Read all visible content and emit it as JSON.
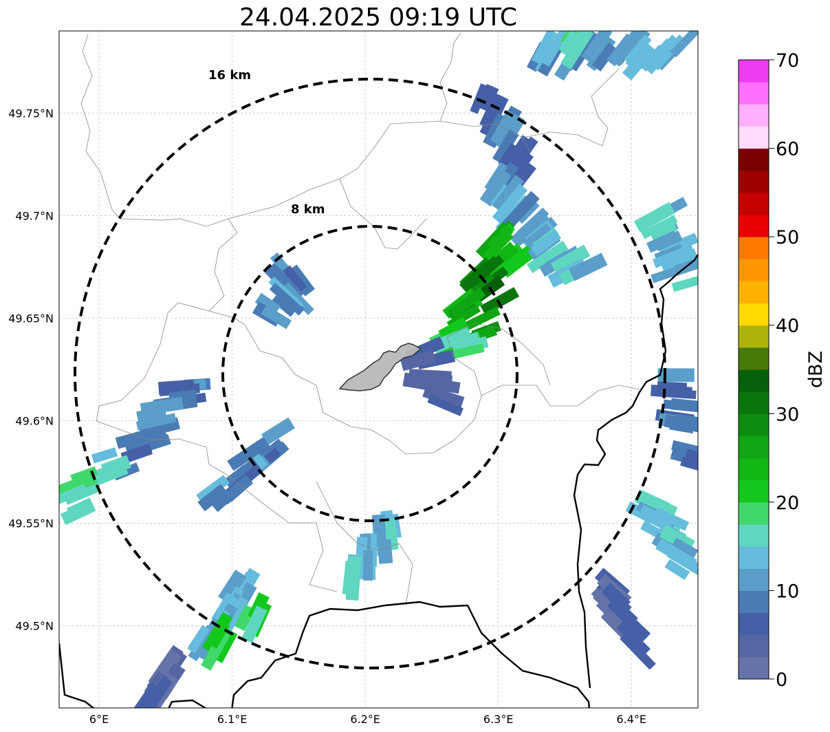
{
  "title": "24.04.2025 09:19 UTC",
  "map": {
    "lon_range": [
      5.97,
      6.45
    ],
    "lat_range": [
      49.46,
      49.79
    ],
    "x_ticks": [
      {
        "value": 6.0,
        "label": "6°E"
      },
      {
        "value": 6.1,
        "label": "6.1°E"
      },
      {
        "value": 6.2,
        "label": "6.2°E"
      },
      {
        "value": 6.3,
        "label": "6.3°E"
      },
      {
        "value": 6.4,
        "label": "6.4°E"
      }
    ],
    "y_ticks": [
      {
        "value": 49.5,
        "label": "49.5°N"
      },
      {
        "value": 49.55,
        "label": "49.55°N"
      },
      {
        "value": 49.6,
        "label": "49.6°N"
      },
      {
        "value": 49.65,
        "label": "49.65°N"
      },
      {
        "value": 49.7,
        "label": "49.7°N"
      },
      {
        "value": 49.75,
        "label": "49.75°N"
      }
    ],
    "gridlines": true,
    "radar_center": {
      "lon": 6.2,
      "lat": 49.623
    },
    "range_rings": [
      {
        "radius_km": 8,
        "label": "8 km"
      },
      {
        "radius_km": 16,
        "label": "16 km"
      }
    ]
  },
  "colorbar": {
    "label": "dBZ",
    "min": 0,
    "max": 70,
    "ticks": [
      {
        "value": 0,
        "label": "0"
      },
      {
        "value": 10,
        "label": "10"
      },
      {
        "value": 20,
        "label": "20"
      },
      {
        "value": 30,
        "label": "30"
      },
      {
        "value": 40,
        "label": "40"
      },
      {
        "value": 50,
        "label": "50"
      },
      {
        "value": 60,
        "label": "60"
      },
      {
        "value": 70,
        "label": "70"
      }
    ],
    "colors": [
      "#6473a8",
      "#5566a3",
      "#4560a6",
      "#4a7bb4",
      "#5a9ec9",
      "#66bcdc",
      "#5fd7c0",
      "#3fd86a",
      "#12c81c",
      "#12b715",
      "#0fa513",
      "#0c8d10",
      "#08760c",
      "#056009",
      "#477a06",
      "#adb309",
      "#ffd900",
      "#ffb300",
      "#ff9800",
      "#ff7a00",
      "#e80000",
      "#c40000",
      "#9e0000",
      "#7a0000",
      "#ffdcff",
      "#ffb0ff",
      "#ff70ff",
      "#f03cf0"
    ]
  },
  "chart_data": {
    "type": "heatmap",
    "title": "24.04.2025 09:19 UTC",
    "quantity": "dBZ",
    "xlabel": "",
    "ylabel": "",
    "xlim": [
      5.97,
      6.45
    ],
    "ylim": [
      49.46,
      49.79
    ],
    "cells": [
      {
        "lon": 6.33,
        "lat": 49.778,
        "lon2": 6.44,
        "lat2": 49.78,
        "dbz": 12
      },
      {
        "lon": 6.36,
        "lat": 49.784,
        "lon2": 6.36,
        "lat2": 49.784,
        "dbz": 18
      },
      {
        "lon": 6.29,
        "lat": 49.755,
        "lon2": 6.32,
        "lat2": 49.722,
        "dbz": 8
      },
      {
        "lon": 6.3,
        "lat": 49.72,
        "lon2": 6.33,
        "lat2": 49.69,
        "dbz": 12
      },
      {
        "lon": 6.295,
        "lat": 49.69,
        "lon2": 6.31,
        "lat2": 49.675,
        "dbz": 24
      },
      {
        "lon": 6.285,
        "lat": 49.675,
        "lon2": 6.295,
        "lat2": 49.66,
        "dbz": 32
      },
      {
        "lon": 6.275,
        "lat": 49.66,
        "lon2": 6.285,
        "lat2": 49.645,
        "dbz": 26
      },
      {
        "lon": 6.265,
        "lat": 49.645,
        "lon2": 6.275,
        "lat2": 49.63,
        "dbz": 20
      },
      {
        "lon": 6.245,
        "lat": 49.63,
        "lon2": 6.255,
        "lat2": 49.61,
        "dbz": 5
      },
      {
        "lon": 6.33,
        "lat": 49.69,
        "lon2": 6.36,
        "lat2": 49.67,
        "dbz": 14
      },
      {
        "lon": 6.42,
        "lat": 49.7,
        "lon2": 6.44,
        "lat2": 49.67,
        "dbz": 14
      },
      {
        "lon": 6.43,
        "lat": 49.62,
        "lon2": 6.45,
        "lat2": 49.58,
        "dbz": 8
      },
      {
        "lon": 6.41,
        "lat": 49.56,
        "lon2": 6.44,
        "lat2": 49.53,
        "dbz": 14
      },
      {
        "lon": 6.38,
        "lat": 49.52,
        "lon2": 6.4,
        "lat2": 49.49,
        "dbz": 4
      },
      {
        "lon": 6.07,
        "lat": 49.62,
        "lon2": 6.02,
        "lat2": 49.58,
        "dbz": 10
      },
      {
        "lon": 6.01,
        "lat": 49.58,
        "lon2": 5.98,
        "lat2": 49.56,
        "dbz": 16
      },
      {
        "lon": 6.13,
        "lat": 49.59,
        "lon2": 6.09,
        "lat2": 49.56,
        "dbz": 10
      },
      {
        "lon": 6.15,
        "lat": 49.67,
        "lon2": 6.13,
        "lat2": 49.65,
        "dbz": 10
      },
      {
        "lon": 6.22,
        "lat": 49.55,
        "lon2": 6.19,
        "lat2": 49.52,
        "dbz": 14
      },
      {
        "lon": 6.11,
        "lat": 49.52,
        "lon2": 6.08,
        "lat2": 49.49,
        "dbz": 14
      },
      {
        "lon": 6.115,
        "lat": 49.505,
        "lon2": 6.115,
        "lat2": 49.505,
        "dbz": 19
      },
      {
        "lon": 6.095,
        "lat": 49.493,
        "lon2": 6.095,
        "lat2": 49.493,
        "dbz": 21
      },
      {
        "lon": 6.06,
        "lat": 49.48,
        "lon2": 6.04,
        "lat2": 49.465,
        "dbz": 4
      }
    ]
  }
}
